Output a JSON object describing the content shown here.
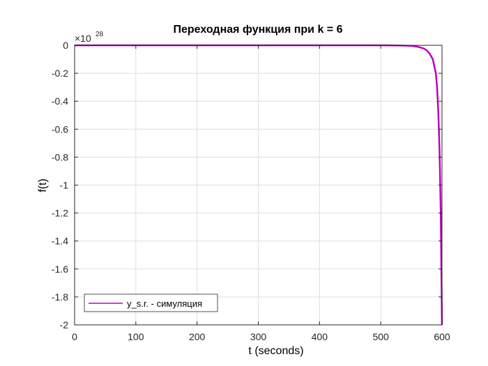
{
  "chart_data": {
    "type": "line",
    "title": "Переходная функция при k = 6",
    "xlabel": "t (seconds)",
    "ylabel": "f(t)",
    "y_exponent_label": "×10",
    "y_exponent_power": "28",
    "xlim": [
      0,
      600
    ],
    "ylim": [
      -2,
      0
    ],
    "x_ticks": [
      0,
      100,
      200,
      300,
      400,
      500,
      600
    ],
    "x_tick_labels": [
      "0",
      "100",
      "200",
      "300",
      "400",
      "500",
      "600"
    ],
    "y_ticks": [
      0,
      -0.2,
      -0.4,
      -0.6,
      -0.8,
      -1,
      -1.2,
      -1.4,
      -1.6,
      -1.8,
      -2
    ],
    "y_tick_labels": [
      "0",
      "-0.2",
      "-0.4",
      "-0.6",
      "-0.8",
      "-1",
      "-1.2",
      "-1.4",
      "-1.6",
      "-1.8",
      "-2"
    ],
    "grid": true,
    "legend_position": "bottom-left",
    "series": [
      {
        "name": "y_s.r. - симуляция",
        "color": "#bf00bf",
        "x": [
          0,
          500,
          530,
          550,
          560,
          570,
          575,
          580,
          585,
          590,
          592,
          594,
          596,
          598,
          600
        ],
        "y": [
          0,
          -0.0001,
          -0.001,
          -0.004,
          -0.01,
          -0.022,
          -0.035,
          -0.06,
          -0.1,
          -0.2,
          -0.3,
          -0.48,
          -0.75,
          -1.2,
          -2
        ]
      }
    ]
  }
}
